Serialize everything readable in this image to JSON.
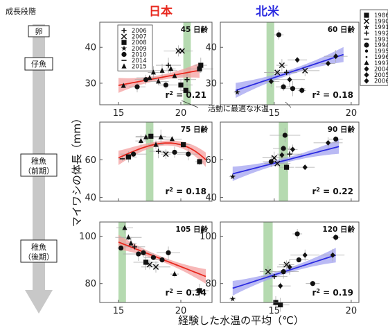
{
  "colors": {
    "japan": "#e8281e",
    "japan_band": "#f4a0a0",
    "na": "#2b2be0",
    "na_band": "#a3a3f0",
    "optimal": "#b5dab0",
    "arrow": "#c8c8c8",
    "frame": "#555555"
  },
  "growth_stage": {
    "title": "成長段階",
    "stages": [
      {
        "label": "卵"
      },
      {
        "label": "仔魚"
      },
      {
        "label": "稚魚",
        "sub": "（前期）"
      },
      {
        "label": "稚魚",
        "sub": "（後期）"
      }
    ]
  },
  "regions": {
    "japan": "日本",
    "north_america": "北米"
  },
  "labels": {
    "ylabel": "マイワシの体長（mm）",
    "xlabel": "経験した水温の平均（℃）",
    "optimal_annotation": "活動に最適な水温",
    "r2_prefix": "r"
  },
  "legend_japan": [
    {
      "year": "2006",
      "marker": "plus"
    },
    {
      "year": "2007",
      "marker": "x"
    },
    {
      "year": "2008",
      "marker": "square"
    },
    {
      "year": "2009",
      "marker": "star"
    },
    {
      "year": "2010",
      "marker": "circle"
    },
    {
      "year": "2014",
      "marker": "bar"
    },
    {
      "year": "2015",
      "marker": "triangle"
    }
  ],
  "legend_na": [
    {
      "year": "1986",
      "marker": "square"
    },
    {
      "year": "1990",
      "marker": "x"
    },
    {
      "year": "1991",
      "marker": "star"
    },
    {
      "year": "1992",
      "marker": "plus"
    },
    {
      "year": "1993",
      "marker": "bar"
    },
    {
      "year": "1994",
      "marker": "circle"
    },
    {
      "year": "1995",
      "marker": "dot"
    },
    {
      "year": "1996",
      "marker": "smalldot"
    },
    {
      "year": "1997",
      "marker": "triangle"
    },
    {
      "year": "2004",
      "marker": "diamond"
    },
    {
      "year": "2005",
      "marker": "diamond"
    },
    {
      "year": "2006",
      "marker": "diamond"
    }
  ],
  "chart_data": [
    {
      "type": "scatter",
      "region": "日本",
      "age": "45 日齢",
      "xlim": [
        13.5,
        22.5
      ],
      "ylim": [
        24,
        47
      ],
      "xticks": [
        15,
        20
      ],
      "yticks": [
        30,
        40
      ],
      "optimal_range": [
        20.2,
        20.8
      ],
      "fit": {
        "type": "linear",
        "x": [
          15,
          21.5
        ],
        "y": [
          29.4,
          33.6
        ]
      },
      "r2": "0.21",
      "points": [
        {
          "x": 15.4,
          "y": 29.3,
          "m": "triangle"
        },
        {
          "x": 16.5,
          "y": 29.0,
          "m": "circle"
        },
        {
          "x": 17.5,
          "y": 31.5,
          "m": "triangle"
        },
        {
          "x": 17.8,
          "y": 33.0,
          "m": "triangle"
        },
        {
          "x": 18.2,
          "y": 30.5,
          "m": "triangle"
        },
        {
          "x": 18.5,
          "y": 33.5,
          "m": "triangle"
        },
        {
          "x": 18.8,
          "y": 29.5,
          "m": "circle"
        },
        {
          "x": 19.0,
          "y": 35.0,
          "m": "plus"
        },
        {
          "x": 19.2,
          "y": 34.0,
          "m": "triangle"
        },
        {
          "x": 19.5,
          "y": 32.0,
          "m": "triangle"
        },
        {
          "x": 19.8,
          "y": 39.0,
          "m": "x"
        },
        {
          "x": 20.1,
          "y": 39.0,
          "m": "x"
        },
        {
          "x": 20.0,
          "y": 29.5,
          "m": "square"
        },
        {
          "x": 20.4,
          "y": 28.0,
          "m": "square"
        },
        {
          "x": 20.5,
          "y": 31.0,
          "m": "plus"
        },
        {
          "x": 21.5,
          "y": 34.0,
          "m": "square"
        },
        {
          "x": 21.6,
          "y": 35.0,
          "m": "square"
        },
        {
          "x": 17.2,
          "y": 31.0,
          "m": "circle"
        }
      ]
    },
    {
      "type": "scatter",
      "region": "北米",
      "age": "60 日齢",
      "xlim": [
        11.5,
        20.5
      ],
      "ylim": [
        24,
        47
      ],
      "xticks": [
        15,
        20
      ],
      "yticks": [
        30,
        40
      ],
      "optimal_range": [
        14.5,
        15.0
      ],
      "fit": {
        "type": "linear",
        "x": [
          12.5,
          19.5
        ],
        "y": [
          28.0,
          38.0
        ]
      },
      "r2": "0.18",
      "points": [
        {
          "x": 12.6,
          "y": 27.5,
          "m": "star"
        },
        {
          "x": 14.8,
          "y": 30.5,
          "m": "diamond"
        },
        {
          "x": 15.2,
          "y": 33.0,
          "m": "x"
        },
        {
          "x": 15.5,
          "y": 35.0,
          "m": "x"
        },
        {
          "x": 15.8,
          "y": 33.0,
          "m": "plus"
        },
        {
          "x": 16.0,
          "y": 31.0,
          "m": "diamond"
        },
        {
          "x": 15.6,
          "y": 29.0,
          "m": "circle"
        },
        {
          "x": 16.2,
          "y": 28.5,
          "m": "circle"
        },
        {
          "x": 15.3,
          "y": 43.5,
          "m": "circle"
        },
        {
          "x": 16.5,
          "y": 36.5,
          "m": "diamond"
        },
        {
          "x": 17.0,
          "y": 33.5,
          "m": "x"
        },
        {
          "x": 18.5,
          "y": 35.5,
          "m": "diamond"
        },
        {
          "x": 19.0,
          "y": 37.5,
          "m": "diamond"
        },
        {
          "x": 16.8,
          "y": 28.0,
          "m": "circle"
        }
      ]
    },
    {
      "type": "scatter",
      "region": "日本",
      "age": "75 日齢",
      "xlim": [
        13.5,
        22.5
      ],
      "ylim": [
        38,
        80
      ],
      "xticks": [
        15,
        20
      ],
      "yticks": [
        40,
        60
      ],
      "optimal_range": [
        17.2,
        17.8
      ],
      "fit": {
        "type": "quadratic",
        "x": [
          15,
          17.5,
          20,
          22
        ],
        "y": [
          61.0,
          67.5,
          68.0,
          60.0
        ]
      },
      "r2": "0.18",
      "points": [
        {
          "x": 15.3,
          "y": 60.5,
          "m": "bar"
        },
        {
          "x": 15.8,
          "y": 61.5,
          "m": "square"
        },
        {
          "x": 16.2,
          "y": 63.0,
          "m": "circle"
        },
        {
          "x": 16.8,
          "y": 70.0,
          "m": "triangle"
        },
        {
          "x": 17.2,
          "y": 72.0,
          "m": "triangle"
        },
        {
          "x": 17.6,
          "y": 72.5,
          "m": "square"
        },
        {
          "x": 18.0,
          "y": 68.0,
          "m": "triangle"
        },
        {
          "x": 18.4,
          "y": 72.0,
          "m": "triangle"
        },
        {
          "x": 18.8,
          "y": 63.0,
          "m": "x"
        },
        {
          "x": 19.3,
          "y": 71.0,
          "m": "triangle"
        },
        {
          "x": 19.5,
          "y": 64.0,
          "m": "circle"
        },
        {
          "x": 20.2,
          "y": 68.0,
          "m": "square"
        },
        {
          "x": 20.6,
          "y": 63.0,
          "m": "circle"
        },
        {
          "x": 21.5,
          "y": 59.0,
          "m": "square"
        },
        {
          "x": 18.2,
          "y": 64.5,
          "m": "plus"
        }
      ]
    },
    {
      "type": "scatter",
      "region": "北米",
      "age": "90 日齢",
      "xlim": [
        11.5,
        20.5
      ],
      "ylim": [
        38,
        80
      ],
      "xticks": [
        15,
        20
      ],
      "yticks": [
        40,
        60
      ],
      "optimal_range": [
        15.3,
        15.9
      ],
      "fit": {
        "type": "linear",
        "x": [
          12.3,
          19.2
        ],
        "y": [
          52.5,
          67.0
        ]
      },
      "r2": "0.22",
      "points": [
        {
          "x": 12.3,
          "y": 51.0,
          "m": "star"
        },
        {
          "x": 14.8,
          "y": 59.0,
          "m": "circle"
        },
        {
          "x": 15.2,
          "y": 58.0,
          "m": "x"
        },
        {
          "x": 15.5,
          "y": 62.5,
          "m": "diamond"
        },
        {
          "x": 15.6,
          "y": 66.0,
          "m": "circle"
        },
        {
          "x": 15.7,
          "y": 73.0,
          "m": "circle"
        },
        {
          "x": 15.8,
          "y": 56.0,
          "m": "square"
        },
        {
          "x": 16.0,
          "y": 63.0,
          "m": "plus"
        },
        {
          "x": 16.2,
          "y": 65.5,
          "m": "diamond"
        },
        {
          "x": 17.0,
          "y": 56.0,
          "m": "diamond"
        },
        {
          "x": 18.5,
          "y": 69.0,
          "m": "diamond"
        },
        {
          "x": 19.0,
          "y": 71.0,
          "m": "circle"
        },
        {
          "x": 15.0,
          "y": 61.0,
          "m": "x"
        }
      ]
    },
    {
      "type": "scatter",
      "region": "日本",
      "age": "105 日齢",
      "xlim": [
        13.5,
        22.5
      ],
      "ylim": [
        72,
        106
      ],
      "xticks": [
        15,
        20
      ],
      "yticks": [
        80,
        100
      ],
      "optimal_range": [
        15.0,
        15.6
      ],
      "fit": {
        "type": "linear",
        "x": [
          15,
          22
        ],
        "y": [
          97.5,
          83.0
        ]
      },
      "r2": "0.34",
      "points": [
        {
          "x": 15.2,
          "y": 95.0,
          "m": "circle"
        },
        {
          "x": 15.5,
          "y": 103.5,
          "m": "triangle"
        },
        {
          "x": 15.8,
          "y": 99.5,
          "m": "triangle"
        },
        {
          "x": 16.0,
          "y": 97.0,
          "m": "triangle"
        },
        {
          "x": 16.3,
          "y": 95.5,
          "m": "plus"
        },
        {
          "x": 16.6,
          "y": 92.5,
          "m": "circle"
        },
        {
          "x": 17.0,
          "y": 93.0,
          "m": "circle"
        },
        {
          "x": 17.2,
          "y": 89.0,
          "m": "square"
        },
        {
          "x": 17.5,
          "y": 88.0,
          "m": "x"
        },
        {
          "x": 17.8,
          "y": 91.0,
          "m": "circle"
        },
        {
          "x": 18.0,
          "y": 87.0,
          "m": "x"
        },
        {
          "x": 18.5,
          "y": 90.0,
          "m": "circle"
        },
        {
          "x": 19.0,
          "y": 93.0,
          "m": "circle"
        },
        {
          "x": 19.5,
          "y": 84.0,
          "m": "triangle"
        },
        {
          "x": 21.5,
          "y": 77.0,
          "m": "square"
        }
      ]
    },
    {
      "type": "scatter",
      "region": "北米",
      "age": "120 日齢",
      "xlim": [
        11.5,
        20.5
      ],
      "ylim": [
        72,
        106
      ],
      "xticks": [
        15,
        20
      ],
      "yticks": [
        80,
        100
      ],
      "optimal_range": [
        14.3,
        14.9
      ],
      "fit": {
        "type": "linear",
        "x": [
          12.3,
          19.0
        ],
        "y": [
          78.0,
          92.0
        ]
      },
      "r2": "0.19",
      "points": [
        {
          "x": 12.3,
          "y": 73.5,
          "m": "star"
        },
        {
          "x": 14.6,
          "y": 85.0,
          "m": "x"
        },
        {
          "x": 15.0,
          "y": 83.0,
          "m": "plus"
        },
        {
          "x": 15.1,
          "y": 72.0,
          "m": "square"
        },
        {
          "x": 15.4,
          "y": 79.0,
          "m": "diamond"
        },
        {
          "x": 15.6,
          "y": 85.0,
          "m": "circle"
        },
        {
          "x": 15.8,
          "y": 88.0,
          "m": "x"
        },
        {
          "x": 16.0,
          "y": 87.0,
          "m": "diamond"
        },
        {
          "x": 16.5,
          "y": 101.0,
          "m": "circle"
        },
        {
          "x": 16.6,
          "y": 90.0,
          "m": "circle"
        },
        {
          "x": 17.0,
          "y": 92.0,
          "m": "diamond"
        },
        {
          "x": 17.5,
          "y": 80.0,
          "m": "circle"
        },
        {
          "x": 18.8,
          "y": 92.0,
          "m": "diamond"
        },
        {
          "x": 19.0,
          "y": 99.5,
          "m": "circle"
        },
        {
          "x": 15.4,
          "y": 71.0,
          "m": "square"
        }
      ]
    }
  ]
}
